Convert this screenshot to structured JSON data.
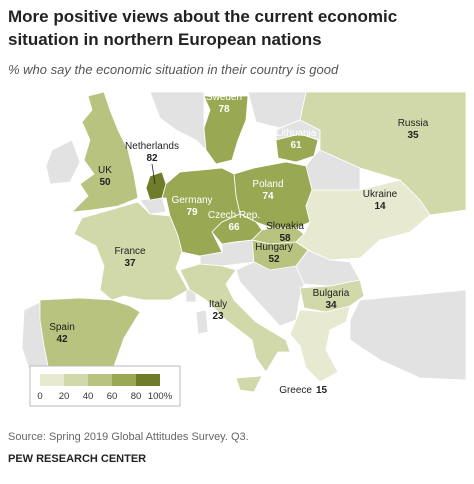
{
  "header": {
    "title_lines": [
      "More positive views about the current economic",
      "situation in northern European nations"
    ],
    "subtitle": "% who say the economic situation in their country is good"
  },
  "countries": [
    {
      "name": "Sweden",
      "value": 78
    },
    {
      "name": "Lithuania",
      "value": 61
    },
    {
      "name": "Russia",
      "value": 35
    },
    {
      "name": "Netherlands",
      "value": 82
    },
    {
      "name": "UK",
      "value": 50
    },
    {
      "name": "Poland",
      "value": 74
    },
    {
      "name": "Germany",
      "value": 79
    },
    {
      "name": "Czech Rep.",
      "value": 66
    },
    {
      "name": "Slovakia",
      "value": 58
    },
    {
      "name": "Hungary",
      "value": 52
    },
    {
      "name": "Ukraine",
      "value": 14
    },
    {
      "name": "France",
      "value": 37
    },
    {
      "name": "Italy",
      "value": 23
    },
    {
      "name": "Bulgaria",
      "value": 34
    },
    {
      "name": "Spain",
      "value": 42
    },
    {
      "name": "Greece",
      "value": 15
    }
  ],
  "legend": {
    "ticks": [
      0,
      20,
      40,
      60,
      80,
      {
        "value": 100,
        "label": "100%"
      }
    ],
    "colors": [
      "#e7ead1",
      "#d1d9aa",
      "#b7c37e",
      "#98a853",
      "#6f7d2b"
    ]
  },
  "footer": {
    "source": "Source: Spring 2019 Global Attitudes Survey. Q3.",
    "org": "PEW RESEARCH CENTER"
  }
}
